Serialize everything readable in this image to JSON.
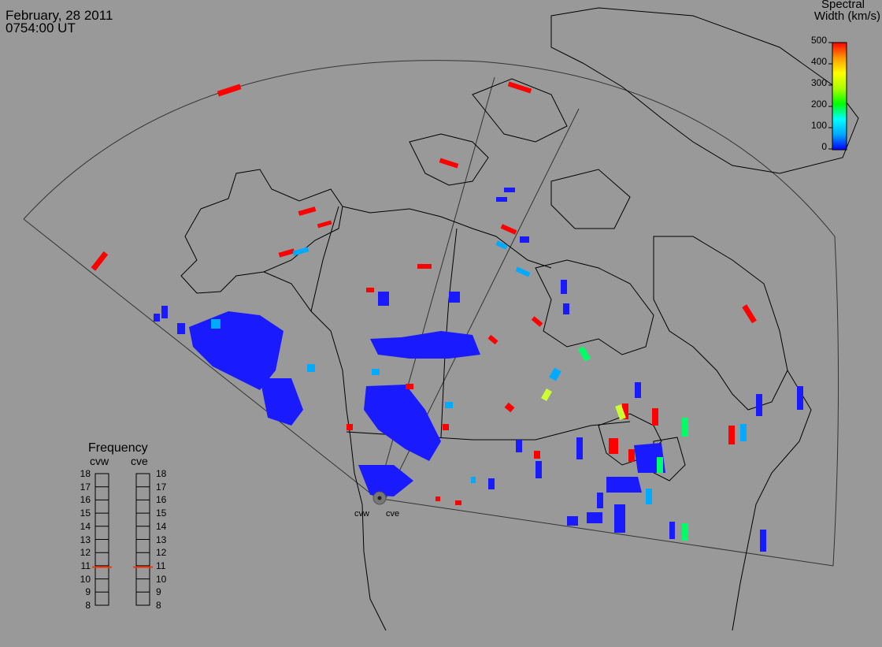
{
  "header": {
    "date": "February, 28 2011",
    "time": "0754:00 UT"
  },
  "colorbar": {
    "title_line1": "Spectral",
    "title_line2": "Width (km/s)",
    "ticks": [
      "500",
      "400",
      "300",
      "200",
      "100",
      "0"
    ],
    "min": 0,
    "max": 500,
    "stops": [
      "#0000ff",
      "#00aaff",
      "#00ffff",
      "#00ff00",
      "#aaff00",
      "#ffff00",
      "#ff9900",
      "#ff0000"
    ]
  },
  "frequency_panel": {
    "title": "Frequency",
    "radars": [
      "cvw",
      "cve"
    ],
    "ticks": [
      "18",
      "17",
      "16",
      "15",
      "14",
      "13",
      "12",
      "11",
      "10",
      "9",
      "8"
    ],
    "current_mhz": [
      10.9,
      10.9
    ],
    "indicator_color": "#ff3300"
  },
  "radar_labels": [
    "cvw",
    "cve"
  ],
  "colors": {
    "background": "#999999",
    "coastline": "#000000",
    "fov": "#333333"
  }
}
